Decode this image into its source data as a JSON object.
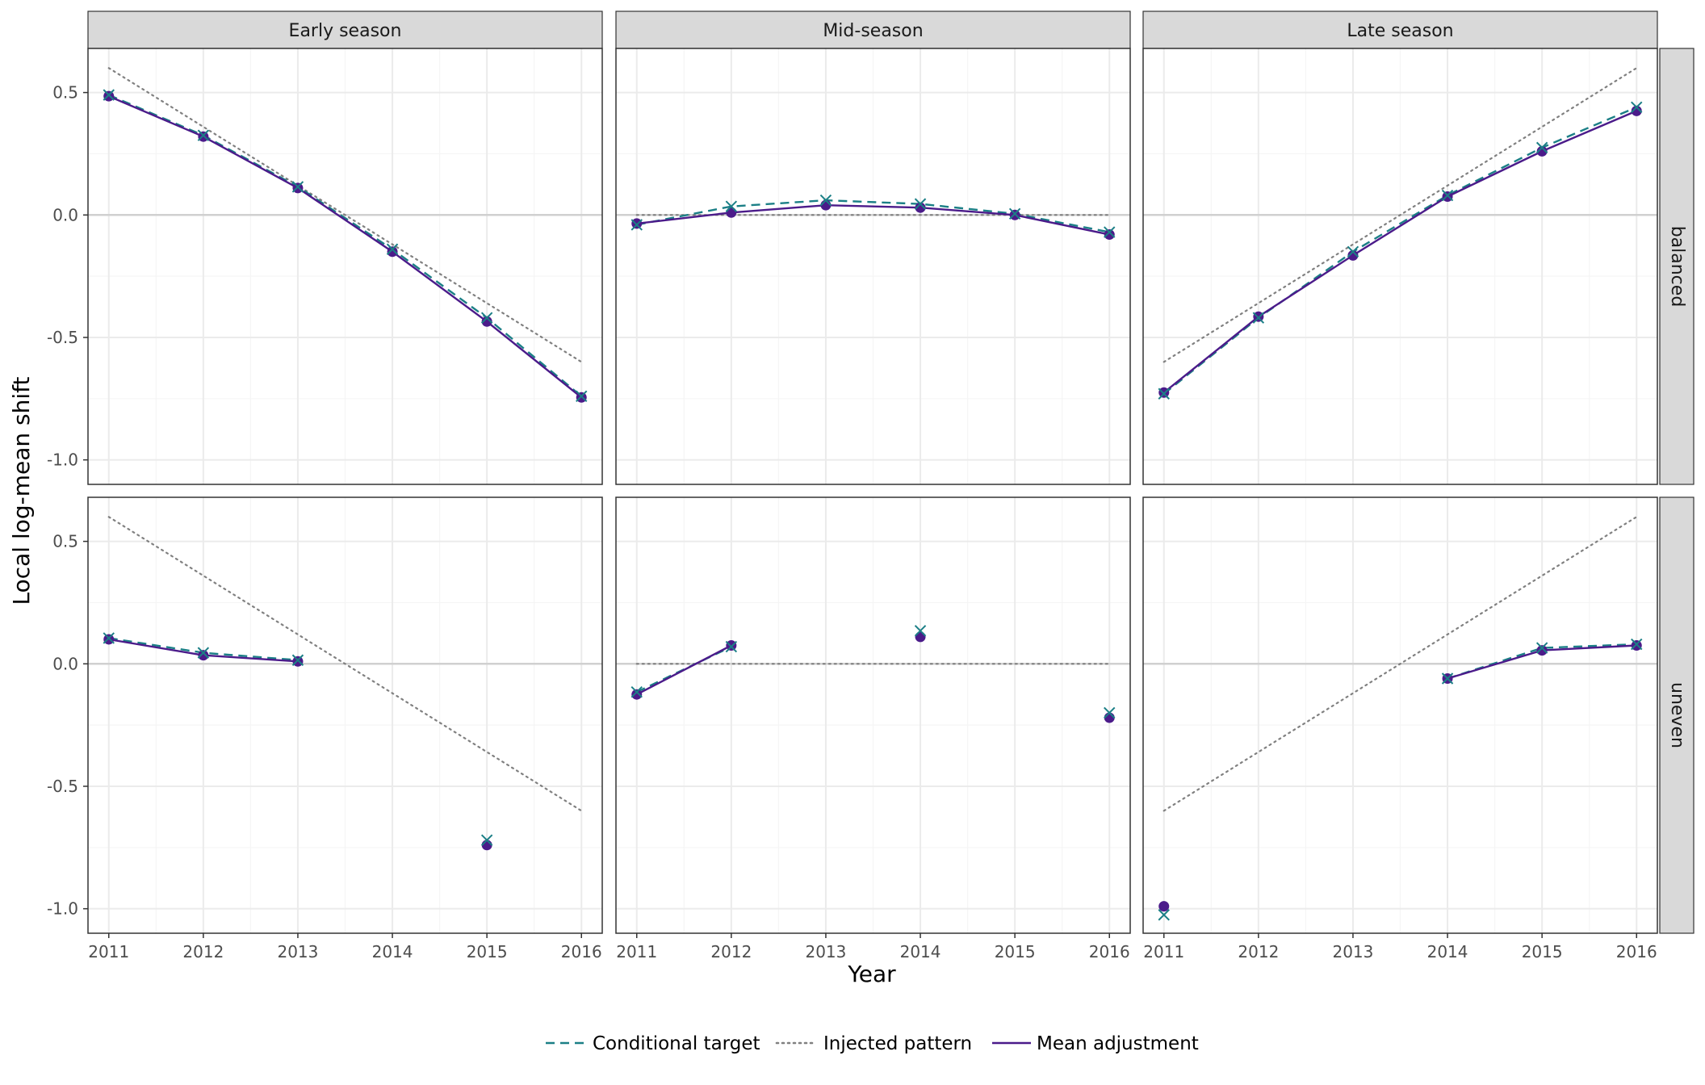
{
  "chart_data": {
    "type": "line",
    "facet_cols": [
      "Early season",
      "Mid-season",
      "Late season"
    ],
    "facet_rows": [
      "balanced",
      "uneven"
    ],
    "xlabel": "Year",
    "ylabel": "Local log-mean shift",
    "x_ticks": [
      "2011",
      "2012",
      "2013",
      "2014",
      "2015",
      "2016"
    ],
    "y_ticks": [
      "0.5",
      "0.0",
      "-0.5",
      "-1.0"
    ],
    "y_tick_values": [
      0.5,
      0.0,
      -0.5,
      -1.0
    ],
    "xlim": [
      2010.78,
      2016.22
    ],
    "ylim": [
      -1.1,
      0.68
    ],
    "grid": true,
    "legend_position": "bottom",
    "legend": [
      {
        "key": "target",
        "label": "Conditional target"
      },
      {
        "key": "injected",
        "label": "Injected pattern"
      },
      {
        "key": "mean",
        "label": "Mean adjustment"
      }
    ],
    "colors": {
      "target": "#1b7f86",
      "injected": "#808080",
      "mean": "#4b1b8a",
      "strip_bg": "#d9d9d9",
      "grid_major": "#ebebeb",
      "grid_minor": "#f5f5f5",
      "zero_line": "#d0d0d0",
      "panel_border": "#333333"
    },
    "panels": [
      {
        "row": "balanced",
        "col": "Early season",
        "injected": [
          [
            2011,
            0.6
          ],
          [
            2016,
            -0.6
          ]
        ],
        "target": [
          [
            2011,
            0.49
          ],
          [
            2012,
            0.325
          ],
          [
            2013,
            0.115
          ],
          [
            2014,
            -0.14
          ],
          [
            2015,
            -0.42
          ],
          [
            2016,
            -0.74
          ]
        ],
        "mean": [
          [
            2011,
            0.485
          ],
          [
            2012,
            0.32
          ],
          [
            2013,
            0.11
          ],
          [
            2014,
            -0.15
          ],
          [
            2015,
            -0.435
          ],
          [
            2016,
            -0.745
          ]
        ]
      },
      {
        "row": "balanced",
        "col": "Mid-season",
        "injected": [
          [
            2011,
            0.0
          ],
          [
            2016,
            0.0
          ]
        ],
        "target": [
          [
            2011,
            -0.04
          ],
          [
            2012,
            0.035
          ],
          [
            2013,
            0.06
          ],
          [
            2014,
            0.045
          ],
          [
            2015,
            0.005
          ],
          [
            2016,
            -0.07
          ]
        ],
        "mean": [
          [
            2011,
            -0.035
          ],
          [
            2012,
            0.01
          ],
          [
            2013,
            0.04
          ],
          [
            2014,
            0.03
          ],
          [
            2015,
            0.0
          ],
          [
            2016,
            -0.08
          ]
        ]
      },
      {
        "row": "balanced",
        "col": "Late season",
        "injected": [
          [
            2011,
            -0.6
          ],
          [
            2016,
            0.6
          ]
        ],
        "target": [
          [
            2011,
            -0.73
          ],
          [
            2012,
            -0.42
          ],
          [
            2013,
            -0.15
          ],
          [
            2014,
            0.08
          ],
          [
            2015,
            0.275
          ],
          [
            2016,
            0.44
          ]
        ],
        "mean": [
          [
            2011,
            -0.725
          ],
          [
            2012,
            -0.415
          ],
          [
            2013,
            -0.165
          ],
          [
            2014,
            0.075
          ],
          [
            2015,
            0.26
          ],
          [
            2016,
            0.425
          ]
        ]
      },
      {
        "row": "uneven",
        "col": "Early season",
        "injected": [
          [
            2011,
            0.6
          ],
          [
            2016,
            -0.6
          ]
        ],
        "target": [
          [
            2011,
            0.105
          ],
          [
            2012,
            0.045
          ],
          [
            2013,
            0.015
          ],
          [
            2014,
            null
          ],
          [
            2015,
            -0.72
          ],
          [
            2016,
            null
          ]
        ],
        "mean": [
          [
            2011,
            0.1
          ],
          [
            2012,
            0.035
          ],
          [
            2013,
            0.01
          ],
          [
            2014,
            null
          ],
          [
            2015,
            -0.74
          ],
          [
            2016,
            null
          ]
        ]
      },
      {
        "row": "uneven",
        "col": "Mid-season",
        "injected": [
          [
            2011,
            0.0
          ],
          [
            2016,
            0.0
          ]
        ],
        "target": [
          [
            2011,
            -0.115
          ],
          [
            2012,
            0.07
          ],
          [
            2013,
            null
          ],
          [
            2014,
            0.135
          ],
          [
            2015,
            null
          ],
          [
            2016,
            -0.2
          ]
        ],
        "mean": [
          [
            2011,
            -0.125
          ],
          [
            2012,
            0.075
          ],
          [
            2013,
            null
          ],
          [
            2014,
            0.11
          ],
          [
            2015,
            null
          ],
          [
            2016,
            -0.22
          ]
        ]
      },
      {
        "row": "uneven",
        "col": "Late season",
        "injected": [
          [
            2011,
            -0.6
          ],
          [
            2016,
            0.6
          ]
        ],
        "target": [
          [
            2011,
            -1.025
          ],
          [
            2012,
            null
          ],
          [
            2013,
            null
          ],
          [
            2014,
            -0.06
          ],
          [
            2015,
            0.065
          ],
          [
            2016,
            0.08
          ]
        ],
        "mean": [
          [
            2011,
            -0.99
          ],
          [
            2012,
            null
          ],
          [
            2013,
            null
          ],
          [
            2014,
            -0.06
          ],
          [
            2015,
            0.055
          ],
          [
            2016,
            0.075
          ]
        ]
      }
    ]
  }
}
